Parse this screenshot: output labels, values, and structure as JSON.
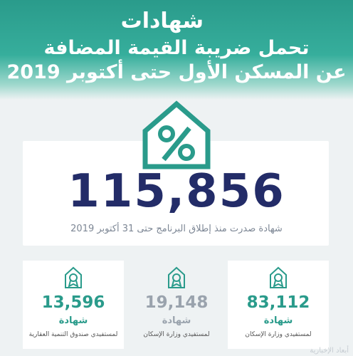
{
  "header": {
    "title": "شهادات",
    "subtitle_line1": "تحمل ضريبة القيمة المضافة",
    "subtitle_line2": "عن المسكن الأول حتى أكتوبر 2019"
  },
  "icons": {
    "main": "house-percent-icon",
    "stat": "house-medal-icon"
  },
  "total": {
    "value": "115,856",
    "caption": "شهادة صدرت منذ إطلاق البرنامج حتى 31 أكتوبر 2019"
  },
  "stats": [
    {
      "value": "13,596",
      "unit": "شهادة",
      "label": "لمستفيدي صندوق التنمية العقارية"
    },
    {
      "value": "19,148",
      "unit": "شهادة",
      "label": "لمستفيدي وزارة الإسكان"
    },
    {
      "value": "83,112",
      "unit": "شهادة",
      "label": "لمستفيدي وزارة الإسكان"
    }
  ],
  "colors": {
    "teal": "#2a9b8b",
    "navy": "#232c68",
    "grey": "#9aa3ad"
  },
  "watermark": "أبعاد الإخبارية"
}
